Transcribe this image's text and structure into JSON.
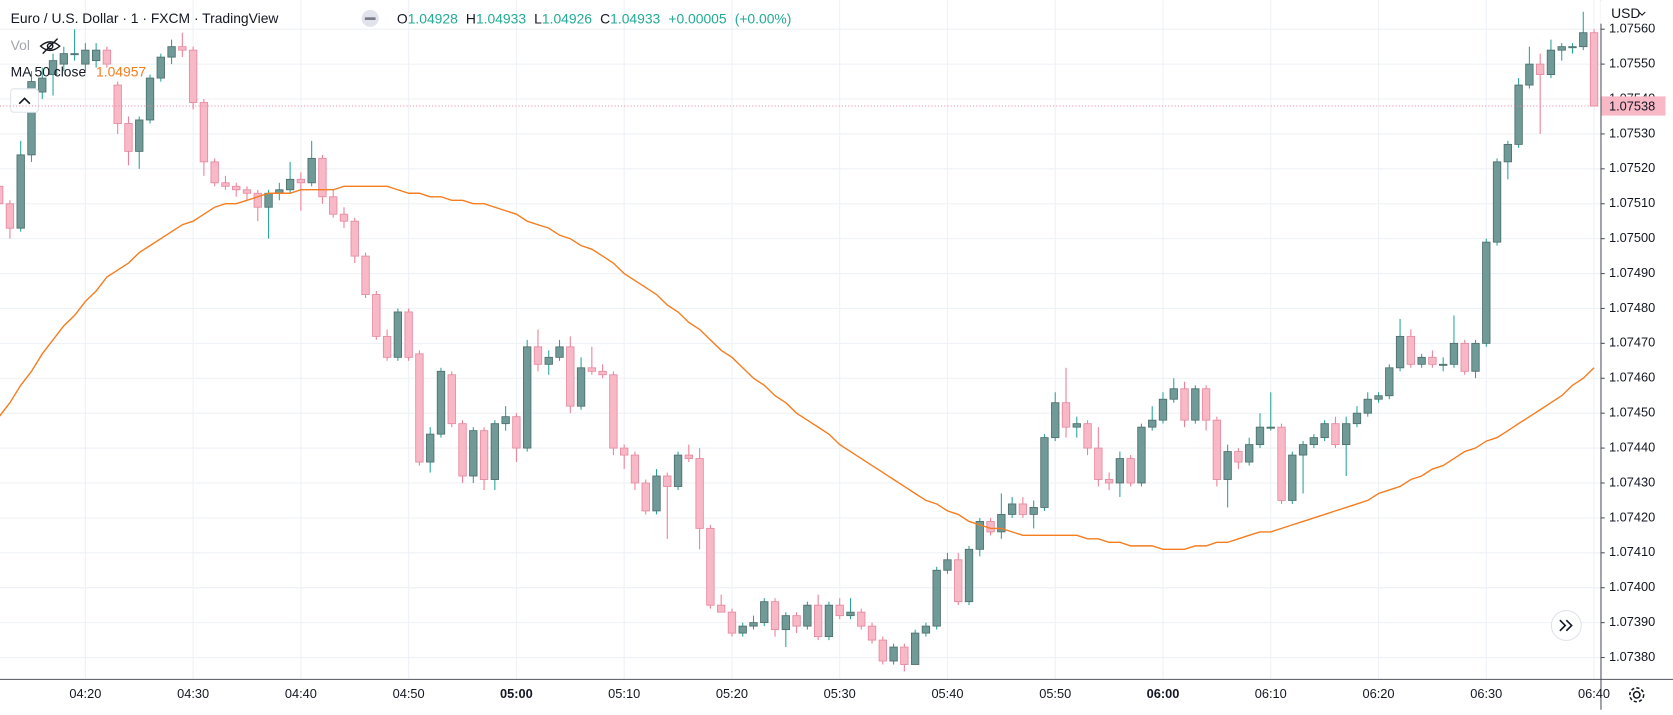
{
  "chart_data": {
    "type": "candlestick",
    "title": "Euro / U.S. Dollar · 1 · FXCM · TradingView",
    "header": {
      "labels": [
        "O",
        "H",
        "L",
        "C"
      ],
      "values": [
        "1.04928",
        "1.04933",
        "1.04926",
        "1.04933"
      ],
      "change": "+0.00005",
      "change_percent": "(+0.00%)"
    },
    "volume_label": "Vol",
    "currency": "USD",
    "up_color": "#6f9a97",
    "up_border": "#4f6f6c",
    "up_wick": "#26a69a",
    "down_color": "#f8b8c6",
    "down_border": "#e68aa0",
    "down_wick": "#ef7f97",
    "grid": true,
    "ylim": [
      1.073739,
      1.075683
    ],
    "yticks": [
      {
        "value": 1.0738,
        "label": "1.07380"
      },
      {
        "value": 1.0739,
        "label": "1.07390"
      },
      {
        "value": 1.074,
        "label": "1.07400"
      },
      {
        "value": 1.0741,
        "label": "1.07410"
      },
      {
        "value": 1.0742,
        "label": "1.07420"
      },
      {
        "value": 1.0743,
        "label": "1.07430"
      },
      {
        "value": 1.0744,
        "label": "1.07440"
      },
      {
        "value": 1.0745,
        "label": "1.07450"
      },
      {
        "value": 1.0746,
        "label": "1.07460"
      },
      {
        "value": 1.0747,
        "label": "1.07470"
      },
      {
        "value": 1.0748,
        "label": "1.07480"
      },
      {
        "value": 1.0749,
        "label": "1.07490"
      },
      {
        "value": 1.075,
        "label": "1.07500"
      },
      {
        "value": 1.0751,
        "label": "1.07510"
      },
      {
        "value": 1.0752,
        "label": "1.07520"
      },
      {
        "value": 1.0753,
        "label": "1.07530"
      },
      {
        "value": 1.0754,
        "label": "1.07540"
      },
      {
        "value": 1.0755,
        "label": "1.07550"
      },
      {
        "value": 1.0756,
        "label": "1.07560"
      }
    ],
    "categories": [
      null,
      null,
      null,
      null,
      null,
      null,
      null,
      null,
      "04:20",
      null,
      null,
      null,
      null,
      null,
      null,
      null,
      null,
      null,
      "04:30",
      null,
      null,
      null,
      null,
      null,
      null,
      null,
      null,
      null,
      "04:40",
      null,
      null,
      null,
      null,
      null,
      null,
      null,
      null,
      null,
      "04:50",
      null,
      null,
      null,
      null,
      null,
      null,
      null,
      null,
      null,
      "05:00",
      null,
      null,
      null,
      null,
      null,
      null,
      null,
      null,
      null,
      "05:10",
      null,
      null,
      null,
      null,
      null,
      null,
      null,
      null,
      null,
      "05:20",
      null,
      null,
      null,
      null,
      null,
      null,
      null,
      null,
      null,
      "05:30",
      null,
      null,
      null,
      null,
      null,
      null,
      null,
      null,
      null,
      "05:40",
      null,
      null,
      null,
      null,
      null,
      null,
      null,
      null,
      null,
      "05:50",
      null,
      null,
      null,
      null,
      null,
      null,
      null,
      null,
      null,
      "06:00",
      null,
      null,
      null,
      null,
      null,
      null,
      null,
      null,
      null,
      "06:10",
      null,
      null,
      null,
      null,
      null,
      null,
      null,
      null,
      null,
      "06:20",
      null,
      null,
      null,
      null,
      null,
      null,
      null,
      null,
      null,
      "06:30",
      null,
      null,
      null,
      null,
      null,
      null,
      null,
      null,
      null,
      "06:40"
    ],
    "ohlc": [
      [
        1.07515,
        1.07517,
        1.07509,
        1.0751
      ],
      [
        1.0751,
        1.07511,
        1.075,
        1.07503
      ],
      [
        1.07503,
        1.07528,
        1.07502,
        1.07524
      ],
      [
        1.07524,
        1.07548,
        1.07522,
        1.07545
      ],
      [
        1.07542,
        1.07549,
        1.0754,
        1.07546
      ],
      [
        1.07547,
        1.07553,
        1.07541,
        1.07551
      ],
      [
        1.0755,
        1.07555,
        1.07548,
        1.07553
      ],
      [
        1.07553,
        1.0756,
        1.07551,
        1.07553
      ],
      [
        1.0755,
        1.07556,
        1.07548,
        1.07554
      ],
      [
        1.07551,
        1.07556,
        1.07549,
        1.07554
      ],
      [
        1.07554,
        1.07555,
        1.07549,
        1.0755
      ],
      [
        1.07544,
        1.07545,
        1.0753,
        1.07533
      ],
      [
        1.07533,
        1.07535,
        1.07521,
        1.07525
      ],
      [
        1.07525,
        1.07535,
        1.0752,
        1.07534
      ],
      [
        1.07534,
        1.07547,
        1.07533,
        1.07546
      ],
      [
        1.07546,
        1.07553,
        1.07545,
        1.07552
      ],
      [
        1.07552,
        1.07557,
        1.0755,
        1.07555
      ],
      [
        1.07555,
        1.07559,
        1.07552,
        1.07554
      ],
      [
        1.07554,
        1.07555,
        1.07537,
        1.07539
      ],
      [
        1.07539,
        1.0754,
        1.07518,
        1.07522
      ],
      [
        1.07522,
        1.07523,
        1.07515,
        1.07516
      ],
      [
        1.07516,
        1.07518,
        1.07514,
        1.07515
      ],
      [
        1.07515,
        1.07516,
        1.07512,
        1.07514
      ],
      [
        1.07514,
        1.07515,
        1.07511,
        1.07513
      ],
      [
        1.07513,
        1.07514,
        1.07505,
        1.07509
      ],
      [
        1.07509,
        1.07514,
        1.075,
        1.07513
      ],
      [
        1.07513,
        1.07516,
        1.07511,
        1.07514
      ],
      [
        1.07514,
        1.07522,
        1.07513,
        1.07517
      ],
      [
        1.07517,
        1.07519,
        1.07508,
        1.07516
      ],
      [
        1.07516,
        1.07528,
        1.07515,
        1.07523
      ],
      [
        1.07523,
        1.07524,
        1.0751,
        1.07512
      ],
      [
        1.07512,
        1.07514,
        1.07506,
        1.07507
      ],
      [
        1.07507,
        1.07509,
        1.07503,
        1.07505
      ],
      [
        1.07505,
        1.07506,
        1.07493,
        1.07495
      ],
      [
        1.07495,
        1.07496,
        1.07483,
        1.07484
      ],
      [
        1.07484,
        1.07485,
        1.07471,
        1.07472
      ],
      [
        1.07472,
        1.07474,
        1.07465,
        1.07466
      ],
      [
        1.07466,
        1.0748,
        1.07465,
        1.07479
      ],
      [
        1.07479,
        1.0748,
        1.07465,
        1.07466
      ],
      [
        1.07467,
        1.07468,
        1.07435,
        1.07436
      ],
      [
        1.07436,
        1.07446,
        1.07433,
        1.07444
      ],
      [
        1.07444,
        1.07463,
        1.07443,
        1.07462
      ],
      [
        1.07461,
        1.07462,
        1.07446,
        1.07447
      ],
      [
        1.07447,
        1.07448,
        1.0743,
        1.07432
      ],
      [
        1.07432,
        1.07446,
        1.0743,
        1.07445
      ],
      [
        1.07445,
        1.07446,
        1.07428,
        1.07431
      ],
      [
        1.07431,
        1.07448,
        1.07428,
        1.07447
      ],
      [
        1.07447,
        1.07452,
        1.07445,
        1.07449
      ],
      [
        1.07449,
        1.0745,
        1.07436,
        1.0744
      ],
      [
        1.0744,
        1.07471,
        1.07439,
        1.07469
      ],
      [
        1.07469,
        1.07474,
        1.07462,
        1.07464
      ],
      [
        1.07464,
        1.07468,
        1.07461,
        1.07466
      ],
      [
        1.07466,
        1.07471,
        1.07465,
        1.07469
      ],
      [
        1.07469,
        1.07472,
        1.0745,
        1.07452
      ],
      [
        1.07452,
        1.07466,
        1.07451,
        1.07463
      ],
      [
        1.07463,
        1.07469,
        1.07461,
        1.07462
      ],
      [
        1.07462,
        1.07464,
        1.0746,
        1.07461
      ],
      [
        1.07461,
        1.07462,
        1.07438,
        1.0744
      ],
      [
        1.0744,
        1.07441,
        1.07434,
        1.07438
      ],
      [
        1.07438,
        1.07439,
        1.07428,
        1.0743
      ],
      [
        1.0743,
        1.07431,
        1.07421,
        1.07422
      ],
      [
        1.07422,
        1.07434,
        1.07421,
        1.07432
      ],
      [
        1.07432,
        1.07433,
        1.07414,
        1.07429
      ],
      [
        1.07429,
        1.07439,
        1.07428,
        1.07438
      ],
      [
        1.07438,
        1.07441,
        1.07436,
        1.07437
      ],
      [
        1.07437,
        1.0744,
        1.07411,
        1.07417
      ],
      [
        1.07417,
        1.07418,
        1.07394,
        1.07395
      ],
      [
        1.07395,
        1.07398,
        1.07393,
        1.07393
      ],
      [
        1.07393,
        1.07394,
        1.07386,
        1.07387
      ],
      [
        1.07387,
        1.0739,
        1.07386,
        1.07389
      ],
      [
        1.07389,
        1.07392,
        1.07388,
        1.0739
      ],
      [
        1.0739,
        1.07397,
        1.07389,
        1.07396
      ],
      [
        1.07396,
        1.07397,
        1.07386,
        1.07388
      ],
      [
        1.07388,
        1.07393,
        1.07383,
        1.07392
      ],
      [
        1.07392,
        1.07393,
        1.07387,
        1.07389
      ],
      [
        1.07389,
        1.07396,
        1.07388,
        1.07395
      ],
      [
        1.07395,
        1.07398,
        1.07385,
        1.07386
      ],
      [
        1.07386,
        1.07396,
        1.07385,
        1.07395
      ],
      [
        1.07395,
        1.07397,
        1.07391,
        1.07392
      ],
      [
        1.07392,
        1.07397,
        1.07391,
        1.07393
      ],
      [
        1.07393,
        1.07394,
        1.07388,
        1.07389
      ],
      [
        1.07389,
        1.0739,
        1.07384,
        1.07385
      ],
      [
        1.07385,
        1.07386,
        1.07378,
        1.07379
      ],
      [
        1.07379,
        1.07384,
        1.07378,
        1.07383
      ],
      [
        1.07383,
        1.07384,
        1.07376,
        1.07378
      ],
      [
        1.07378,
        1.07388,
        1.07378,
        1.07387
      ],
      [
        1.07387,
        1.0739,
        1.07386,
        1.07389
      ],
      [
        1.07389,
        1.07406,
        1.07388,
        1.07405
      ],
      [
        1.07405,
        1.0741,
        1.07404,
        1.07408
      ],
      [
        1.07408,
        1.0741,
        1.07395,
        1.07396
      ],
      [
        1.07396,
        1.07412,
        1.07395,
        1.07411
      ],
      [
        1.07411,
        1.0742,
        1.07409,
        1.07419
      ],
      [
        1.07419,
        1.0742,
        1.07415,
        1.07416
      ],
      [
        1.07416,
        1.07427,
        1.07414,
        1.07421
      ],
      [
        1.07421,
        1.07426,
        1.0742,
        1.07424
      ],
      [
        1.07424,
        1.07426,
        1.0742,
        1.07421
      ],
      [
        1.07421,
        1.07425,
        1.07417,
        1.07423
      ],
      [
        1.07423,
        1.07444,
        1.07422,
        1.07443
      ],
      [
        1.07443,
        1.07456,
        1.07442,
        1.07453
      ],
      [
        1.07453,
        1.07463,
        1.07443,
        1.07446
      ],
      [
        1.07446,
        1.07449,
        1.07443,
        1.07447
      ],
      [
        1.07447,
        1.07448,
        1.07438,
        1.0744
      ],
      [
        1.0744,
        1.07446,
        1.07429,
        1.07431
      ],
      [
        1.07431,
        1.07433,
        1.07428,
        1.0743
      ],
      [
        1.0743,
        1.07439,
        1.07426,
        1.07437
      ],
      [
        1.07437,
        1.07438,
        1.07429,
        1.0743
      ],
      [
        1.0743,
        1.07447,
        1.07429,
        1.07446
      ],
      [
        1.07446,
        1.07452,
        1.07445,
        1.07448
      ],
      [
        1.07448,
        1.07456,
        1.07447,
        1.07454
      ],
      [
        1.07454,
        1.0746,
        1.07453,
        1.07457
      ],
      [
        1.07457,
        1.07459,
        1.07446,
        1.07448
      ],
      [
        1.07448,
        1.07458,
        1.07447,
        1.07457
      ],
      [
        1.07457,
        1.07458,
        1.07445,
        1.07448
      ],
      [
        1.07448,
        1.07449,
        1.07429,
        1.07431
      ],
      [
        1.07431,
        1.07441,
        1.07423,
        1.07439
      ],
      [
        1.07439,
        1.0744,
        1.07434,
        1.07436
      ],
      [
        1.07436,
        1.07443,
        1.07435,
        1.07441
      ],
      [
        1.07441,
        1.0745,
        1.0744,
        1.07446
      ],
      [
        1.07446,
        1.07456,
        1.07445,
        1.07446
      ],
      [
        1.07446,
        1.07447,
        1.07424,
        1.07425
      ],
      [
        1.07425,
        1.07439,
        1.07424,
        1.07438
      ],
      [
        1.07438,
        1.07442,
        1.07427,
        1.07441
      ],
      [
        1.07441,
        1.07444,
        1.0744,
        1.07443
      ],
      [
        1.07443,
        1.07448,
        1.07442,
        1.07447
      ],
      [
        1.07447,
        1.07449,
        1.0744,
        1.07441
      ],
      [
        1.07441,
        1.07449,
        1.07432,
        1.07447
      ],
      [
        1.07447,
        1.07452,
        1.07446,
        1.0745
      ],
      [
        1.0745,
        1.07456,
        1.07449,
        1.07454
      ],
      [
        1.07454,
        1.07456,
        1.07453,
        1.07455
      ],
      [
        1.07455,
        1.07464,
        1.07454,
        1.07463
      ],
      [
        1.07463,
        1.07477,
        1.07462,
        1.07472
      ],
      [
        1.07472,
        1.07474,
        1.07463,
        1.07464
      ],
      [
        1.07464,
        1.07467,
        1.07463,
        1.07466
      ],
      [
        1.07466,
        1.07468,
        1.07463,
        1.07464
      ],
      [
        1.07464,
        1.07466,
        1.07462,
        1.07464
      ],
      [
        1.07464,
        1.07478,
        1.07463,
        1.0747
      ],
      [
        1.0747,
        1.07471,
        1.07461,
        1.07462
      ],
      [
        1.07462,
        1.07471,
        1.0746,
        1.0747
      ],
      [
        1.0747,
        1.075,
        1.07469,
        1.07499
      ],
      [
        1.07499,
        1.07523,
        1.07498,
        1.07522
      ],
      [
        1.07522,
        1.07528,
        1.07517,
        1.07527
      ],
      [
        1.07527,
        1.07546,
        1.07526,
        1.07544
      ],
      [
        1.07544,
        1.07555,
        1.07543,
        1.0755
      ],
      [
        1.0755,
        1.07553,
        1.0753,
        1.07547
      ],
      [
        1.07547,
        1.07557,
        1.07546,
        1.07554
      ],
      [
        1.07554,
        1.07556,
        1.07551,
        1.07555
      ],
      [
        1.07555,
        1.07556,
        1.07553,
        1.07555
      ],
      [
        1.07555,
        1.07565,
        1.07554,
        1.07559
      ],
      [
        1.07559,
        1.0756,
        1.07538,
        1.07538
      ]
    ],
    "series": [
      {
        "name": "MA 50 close",
        "color": "#f57c1f",
        "legend_value": "1.04957",
        "values": [
          1.07449,
          1.07453,
          1.07458,
          1.07462,
          1.07467,
          1.07471,
          1.07475,
          1.07478,
          1.07482,
          1.07485,
          1.07489,
          1.07491,
          1.07493,
          1.07496,
          1.07498,
          1.075,
          1.07502,
          1.07504,
          1.07505,
          1.07507,
          1.07509,
          1.0751,
          1.0751,
          1.07511,
          1.07512,
          1.07513,
          1.07513,
          1.07513,
          1.07514,
          1.07514,
          1.07514,
          1.07514,
          1.07515,
          1.07515,
          1.07515,
          1.07515,
          1.07515,
          1.07514,
          1.07513,
          1.07513,
          1.07512,
          1.07512,
          1.07511,
          1.07511,
          1.0751,
          1.0751,
          1.07509,
          1.07508,
          1.07507,
          1.07505,
          1.07504,
          1.07503,
          1.07501,
          1.075,
          1.07498,
          1.07497,
          1.07495,
          1.07493,
          1.0749,
          1.07488,
          1.07486,
          1.07484,
          1.07481,
          1.07479,
          1.07476,
          1.07474,
          1.07471,
          1.07468,
          1.07466,
          1.07463,
          1.0746,
          1.07458,
          1.07455,
          1.07453,
          1.0745,
          1.07448,
          1.07446,
          1.07444,
          1.07441,
          1.07439,
          1.07437,
          1.07435,
          1.07433,
          1.07431,
          1.07429,
          1.07427,
          1.07425,
          1.07424,
          1.07422,
          1.07421,
          1.07419,
          1.07418,
          1.07417,
          1.07417,
          1.07416,
          1.07415,
          1.07415,
          1.07415,
          1.07415,
          1.07415,
          1.07415,
          1.07414,
          1.07414,
          1.07413,
          1.07413,
          1.07412,
          1.07412,
          1.07412,
          1.07411,
          1.07411,
          1.07411,
          1.07412,
          1.07412,
          1.07413,
          1.07413,
          1.07414,
          1.07415,
          1.07416,
          1.07416,
          1.07417,
          1.07418,
          1.07419,
          1.0742,
          1.07421,
          1.07422,
          1.07423,
          1.07424,
          1.07425,
          1.07427,
          1.07428,
          1.07429,
          1.07431,
          1.07432,
          1.07434,
          1.07435,
          1.07437,
          1.07439,
          1.0744,
          1.07442,
          1.07443,
          1.07445,
          1.07447,
          1.07449,
          1.07451,
          1.07453,
          1.07455,
          1.07458,
          1.0746,
          1.07463
        ]
      }
    ]
  }
}
